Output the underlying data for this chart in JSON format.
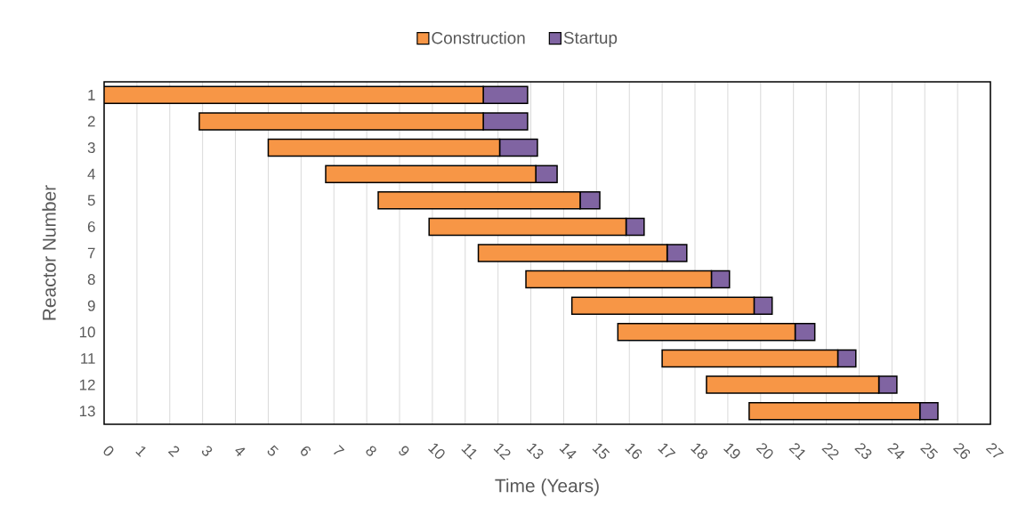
{
  "chart_data": {
    "type": "bar",
    "orientation": "horizontal",
    "stacked": true,
    "xlabel": "Time (Years)",
    "ylabel": "Reactor Number",
    "categories": [
      "1",
      "2",
      "3",
      "4",
      "5",
      "6",
      "7",
      "8",
      "9",
      "10",
      "11",
      "12",
      "13"
    ],
    "series": [
      {
        "name": "Construction",
        "color": "#f79646",
        "base": [
          0,
          2.9,
          5.0,
          6.75,
          8.35,
          9.9,
          11.4,
          12.85,
          14.25,
          15.65,
          17.0,
          18.35,
          19.65
        ],
        "values": [
          11.55,
          8.65,
          7.05,
          6.4,
          6.15,
          6.0,
          5.75,
          5.65,
          5.55,
          5.4,
          5.35,
          5.25,
          5.2
        ]
      },
      {
        "name": "Startup",
        "color": "#8064a2",
        "values": [
          1.35,
          1.35,
          1.15,
          0.65,
          0.6,
          0.55,
          0.6,
          0.55,
          0.55,
          0.6,
          0.55,
          0.55,
          0.55
        ]
      }
    ],
    "xlim": [
      0,
      27
    ],
    "xticks": [
      0,
      1,
      2,
      3,
      4,
      5,
      6,
      7,
      8,
      9,
      10,
      11,
      12,
      13,
      14,
      15,
      16,
      17,
      18,
      19,
      20,
      21,
      22,
      23,
      24,
      25,
      26,
      27
    ],
    "grid": "x",
    "legend": "top"
  }
}
